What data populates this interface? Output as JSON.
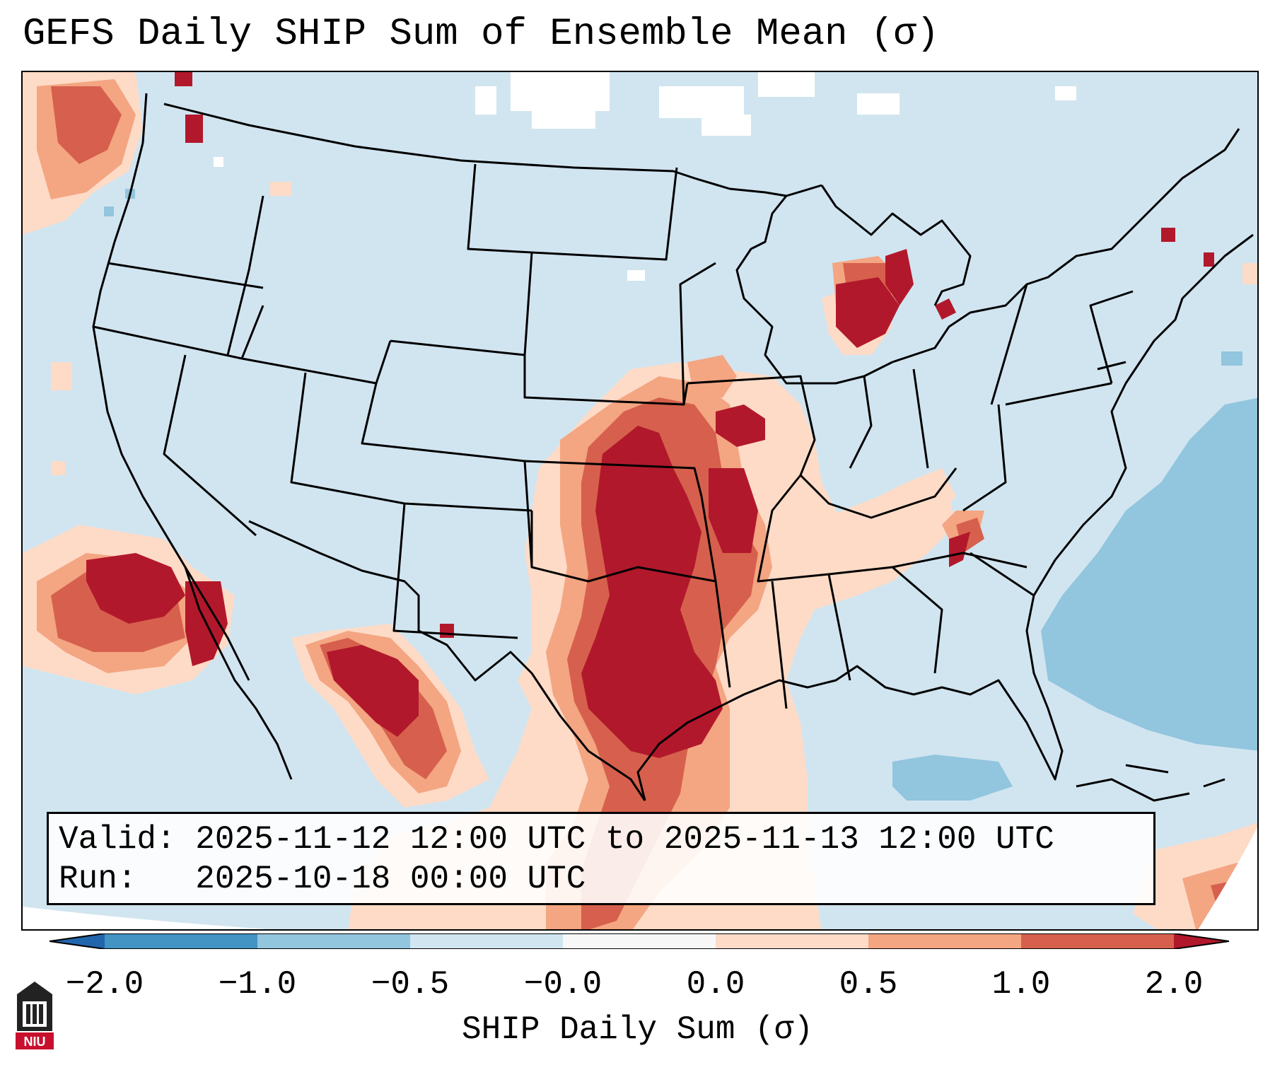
{
  "title": "GEFS Daily SHIP Sum of Ensemble Mean (σ)",
  "info": {
    "valid_label": "Valid:",
    "valid_value": "2025-11-12 12:00 UTC to 2025-11-13 12:00 UTC",
    "run_label": "Run:",
    "run_value": "2025-10-18 00:00 UTC"
  },
  "colorbar": {
    "label": "SHIP Daily Sum (σ)",
    "ticks": [
      "−2.0",
      "−1.0",
      "−0.5",
      "−0.0",
      "0.0",
      "0.5",
      "1.0",
      "2.0"
    ],
    "colors": [
      "#2166ac",
      "#4393c3",
      "#92c5de",
      "#d1e5f0",
      "#fddbc7",
      "#f4a582",
      "#d6604d",
      "#b2182b"
    ]
  },
  "legend_ranges": [
    {
      "from": -2.0,
      "to": -1.0,
      "color": "#4393c3"
    },
    {
      "from": -1.0,
      "to": -0.5,
      "color": "#92c5de"
    },
    {
      "from": -0.5,
      "to": 0.0,
      "color": "#d1e5f0"
    },
    {
      "from": 0.0,
      "to": 0.5,
      "color": "#fddbc7"
    },
    {
      "from": 0.5,
      "to": 1.0,
      "color": "#f4a582"
    },
    {
      "from": 1.0,
      "to": 2.0,
      "color": "#d6604d"
    },
    {
      "from": 2.0,
      "to": null,
      "color": "#b2182b"
    }
  ],
  "logo": {
    "text": "NIU",
    "color": "#c8102e"
  }
}
